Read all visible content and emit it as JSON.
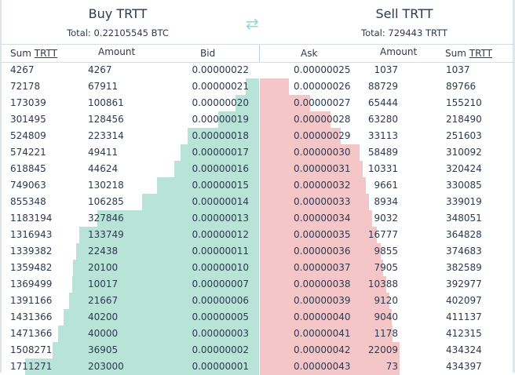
{
  "buy": {
    "title": "Buy TRTT",
    "total": "Total: 0.22105545 BTC"
  },
  "sell": {
    "title": "Sell TRTT",
    "total": "Total: 729443 TRTT"
  },
  "swap_icon": "swap-arrows-icon",
  "colors": {
    "bid_depth": "#b8e3d7",
    "ask_depth": "#f5c6c8",
    "swap": "#8fdcd0"
  },
  "columns": {
    "sum": "Sum",
    "sum_unit": "TRTT",
    "amount": "Amount",
    "bid": "Bid",
    "ask": "Ask"
  },
  "bids": [
    [
      "4267",
      "4267",
      "0.00000022"
    ],
    [
      "72178",
      "67911",
      "0.00000021"
    ],
    [
      "173039",
      "100861",
      "0.00000020"
    ],
    [
      "301495",
      "128456",
      "0.00000019"
    ],
    [
      "524809",
      "223314",
      "0.00000018"
    ],
    [
      "574221",
      "49411",
      "0.00000017"
    ],
    [
      "618845",
      "44624",
      "0.00000016"
    ],
    [
      "749063",
      "130218",
      "0.00000015"
    ],
    [
      "855348",
      "106285",
      "0.00000014"
    ],
    [
      "1183194",
      "327846",
      "0.00000013"
    ],
    [
      "1316943",
      "133749",
      "0.00000012"
    ],
    [
      "1339382",
      "22438",
      "0.00000011"
    ],
    [
      "1359482",
      "20100",
      "0.00000010"
    ],
    [
      "1369499",
      "10017",
      "0.00000007"
    ],
    [
      "1391166",
      "21667",
      "0.00000006"
    ],
    [
      "1431366",
      "40200",
      "0.00000005"
    ],
    [
      "1471366",
      "40000",
      "0.00000003"
    ],
    [
      "1508271",
      "36905",
      "0.00000002"
    ],
    [
      "1711271",
      "203000",
      "0.00000001"
    ]
  ],
  "asks": [
    [
      "0.00000025",
      "1037",
      "1037"
    ],
    [
      "0.00000026",
      "88729",
      "89766"
    ],
    [
      "0.00000027",
      "65444",
      "155210"
    ],
    [
      "0.00000028",
      "63280",
      "218490"
    ],
    [
      "0.00000029",
      "33113",
      "251603"
    ],
    [
      "0.00000030",
      "58489",
      "310092"
    ],
    [
      "0.00000031",
      "10331",
      "320424"
    ],
    [
      "0.00000032",
      "9661",
      "330085"
    ],
    [
      "0.00000033",
      "8934",
      "339019"
    ],
    [
      "0.00000034",
      "9032",
      "348051"
    ],
    [
      "0.00000035",
      "16777",
      "364828"
    ],
    [
      "0.00000036",
      "9855",
      "374683"
    ],
    [
      "0.00000037",
      "7905",
      "382589"
    ],
    [
      "0.00000038",
      "10388",
      "392977"
    ],
    [
      "0.00000039",
      "9120",
      "402097"
    ],
    [
      "0.00000040",
      "9040",
      "411137"
    ],
    [
      "0.00000041",
      "1178",
      "412315"
    ],
    [
      "0.00000042",
      "22009",
      "434324"
    ],
    [
      "0.00000043",
      "73",
      "434397"
    ]
  ]
}
